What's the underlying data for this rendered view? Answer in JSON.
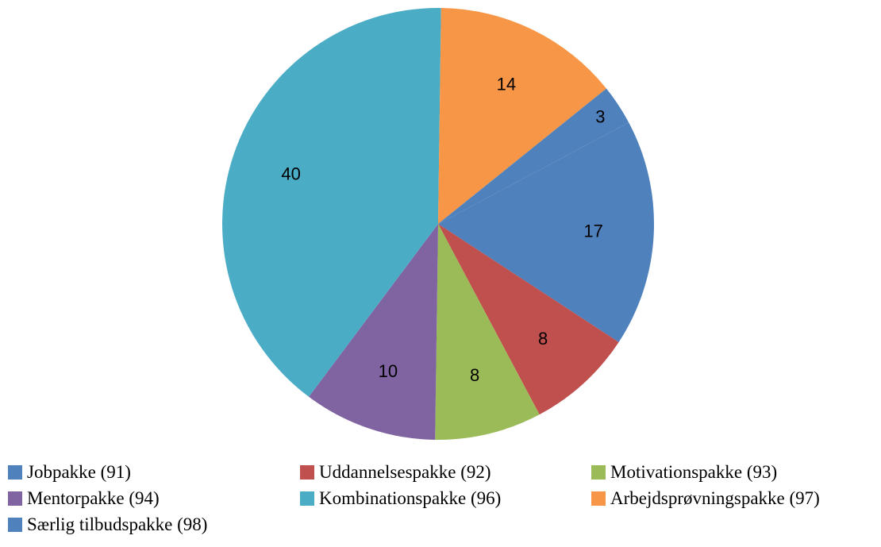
{
  "chart_data": {
    "type": "pie",
    "start_angle_deg": 62,
    "direction": "clockwise",
    "slices": [
      {
        "name": "Jobpakke (91)",
        "value": 17,
        "label": "17",
        "color": "#4F81BD"
      },
      {
        "name": "Uddannelsespakke (92)",
        "value": 8,
        "label": "8",
        "color": "#C0504D"
      },
      {
        "name": "Motivationspakke (93)",
        "value": 8,
        "label": "8",
        "color": "#9BBB59"
      },
      {
        "name": "Mentorpakke (94)",
        "value": 10,
        "label": "10",
        "color": "#8064A2"
      },
      {
        "name": "Kombinationspakke (96)",
        "value": 40,
        "label": "40",
        "color": "#4BACC6"
      },
      {
        "name": "Arbejdsprøvningspakke (97)",
        "value": 14,
        "label": "14",
        "color": "#F79646"
      },
      {
        "name": "Særlig tilbudspakke (98)",
        "value": 3,
        "label": "3",
        "color": "#4F81BD"
      }
    ],
    "legend_position": "bottom"
  }
}
